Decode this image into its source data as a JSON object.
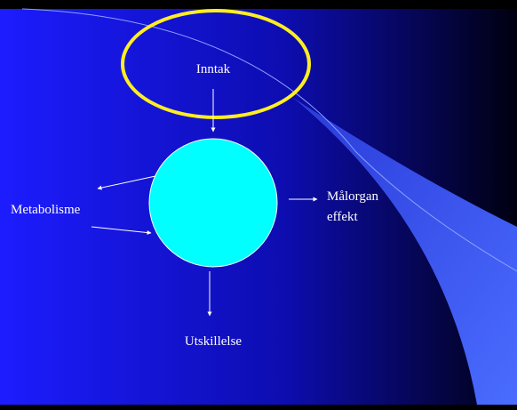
{
  "nodes": [
    {
      "label": "Inntak"
    },
    {
      "label": "Metabolisme"
    },
    {
      "label": "Målorgan"
    },
    {
      "label": "effekt"
    },
    {
      "label": "Utskillelse"
    }
  ]
}
